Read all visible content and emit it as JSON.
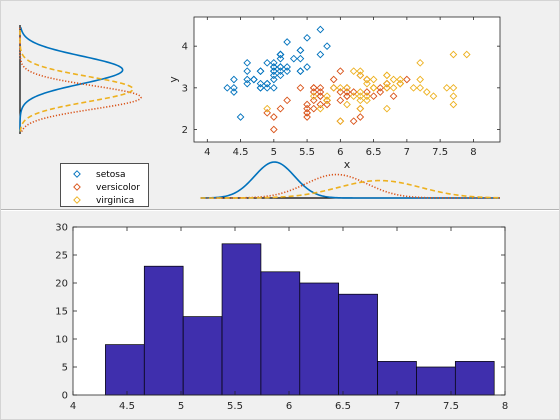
{
  "colors": {
    "setosa": "#0072bd",
    "versicolor": "#d95319",
    "virginica": "#edb120",
    "hist_fill": "#3f2fad",
    "panel_bg": "#f0f0f0",
    "axes_bg": "#ffffff"
  },
  "chart_data": [
    {
      "id": "scatter",
      "type": "scatter",
      "xlabel": "x",
      "ylabel": "y",
      "xlim": [
        3.8,
        8.4
      ],
      "ylim": [
        1.7,
        4.7
      ],
      "xticks": [
        "4",
        "4.5",
        "5",
        "5.5",
        "6",
        "6.5",
        "7",
        "7.5",
        "8"
      ],
      "yticks": [
        "2",
        "3",
        "4"
      ],
      "marker": "diamond-open",
      "series": [
        {
          "name": "setosa",
          "x": [
            5.1,
            4.9,
            4.7,
            4.6,
            5.0,
            5.4,
            4.6,
            5.0,
            4.4,
            4.9,
            5.4,
            4.8,
            4.8,
            4.3,
            5.8,
            5.7,
            5.4,
            5.1,
            5.7,
            5.1,
            5.4,
            5.1,
            4.6,
            5.1,
            4.8,
            5.0,
            5.0,
            5.2,
            5.2,
            4.7,
            4.8,
            5.4,
            5.2,
            5.5,
            4.9,
            5.0,
            5.5,
            4.9,
            4.4,
            5.1,
            5.0,
            4.5,
            4.4,
            5.0,
            5.1,
            4.8,
            5.1,
            4.6,
            5.3,
            5.0
          ],
          "y": [
            3.5,
            3.0,
            3.2,
            3.1,
            3.6,
            3.9,
            3.4,
            3.4,
            2.9,
            3.1,
            3.7,
            3.4,
            3.0,
            3.0,
            4.0,
            4.4,
            3.9,
            3.5,
            3.8,
            3.8,
            3.4,
            3.7,
            3.6,
            3.3,
            3.4,
            3.0,
            3.4,
            3.5,
            3.4,
            3.2,
            3.1,
            3.4,
            4.1,
            4.2,
            3.1,
            3.2,
            3.5,
            3.6,
            3.0,
            3.4,
            3.5,
            2.3,
            3.2,
            3.5,
            3.8,
            3.0,
            3.8,
            3.2,
            3.7,
            3.3
          ]
        },
        {
          "name": "versicolor",
          "x": [
            7.0,
            6.4,
            6.9,
            5.5,
            6.5,
            5.7,
            6.3,
            4.9,
            6.6,
            5.2,
            5.0,
            5.9,
            6.0,
            6.1,
            5.6,
            6.7,
            5.6,
            5.8,
            6.2,
            5.6,
            5.9,
            6.1,
            6.3,
            6.1,
            6.4,
            6.6,
            6.8,
            6.7,
            6.0,
            5.7,
            5.5,
            5.5,
            5.8,
            6.0,
            5.4,
            6.0,
            6.7,
            6.3,
            5.6,
            5.5,
            5.5,
            6.1,
            5.8,
            5.0,
            5.6,
            5.7,
            5.7,
            6.2,
            5.1,
            5.7
          ],
          "y": [
            3.2,
            3.2,
            3.1,
            2.3,
            2.8,
            2.8,
            3.3,
            2.4,
            2.9,
            2.7,
            2.0,
            3.0,
            2.2,
            2.9,
            2.9,
            3.1,
            3.0,
            2.7,
            2.2,
            2.5,
            3.2,
            2.8,
            2.5,
            2.8,
            2.9,
            3.0,
            2.8,
            3.0,
            2.9,
            2.6,
            2.4,
            2.4,
            2.7,
            2.7,
            3.0,
            3.4,
            3.1,
            2.3,
            3.0,
            2.5,
            2.6,
            3.0,
            2.6,
            2.3,
            2.7,
            3.0,
            2.9,
            2.9,
            2.5,
            2.8
          ]
        },
        {
          "name": "virginica",
          "x": [
            6.3,
            5.8,
            7.1,
            6.3,
            6.5,
            7.6,
            4.9,
            7.3,
            6.7,
            7.2,
            6.5,
            6.4,
            6.8,
            5.7,
            5.8,
            6.4,
            6.5,
            7.7,
            7.7,
            6.0,
            6.9,
            5.6,
            7.7,
            6.3,
            6.7,
            7.2,
            6.2,
            6.1,
            6.4,
            7.2,
            7.4,
            7.9,
            6.4,
            6.3,
            6.1,
            7.7,
            6.3,
            6.4,
            6.0,
            6.9,
            6.7,
            6.9,
            5.8,
            6.8,
            6.7,
            6.7,
            6.3,
            6.5,
            6.2,
            5.9
          ],
          "y": [
            3.3,
            2.7,
            3.0,
            2.9,
            3.0,
            3.0,
            2.5,
            2.9,
            2.5,
            3.6,
            3.2,
            2.7,
            3.0,
            2.5,
            2.8,
            3.2,
            3.0,
            3.8,
            2.6,
            2.2,
            3.2,
            2.8,
            2.8,
            2.7,
            3.3,
            3.2,
            2.8,
            3.0,
            2.8,
            3.0,
            2.8,
            3.8,
            2.8,
            2.8,
            2.6,
            3.0,
            3.4,
            3.1,
            3.0,
            3.1,
            3.1,
            3.1,
            2.7,
            3.2,
            3.3,
            3.0,
            2.5,
            3.0,
            3.4,
            3.0
          ]
        }
      ]
    },
    {
      "id": "density_y",
      "type": "line",
      "orientation": "vertical",
      "ylim": [
        1.7,
        4.7
      ],
      "series": [
        {
          "name": "setosa",
          "style": "solid",
          "mean": 3.43,
          "sd": 0.33
        },
        {
          "name": "versicolor",
          "style": "dotted",
          "mean": 2.77,
          "sd": 0.28
        },
        {
          "name": "virginica",
          "style": "dashed",
          "mean": 2.97,
          "sd": 0.3
        }
      ]
    },
    {
      "id": "density_x",
      "type": "line",
      "orientation": "horizontal",
      "xlim": [
        3.8,
        8.4
      ],
      "series": [
        {
          "name": "setosa",
          "style": "solid",
          "mean": 5.01,
          "sd": 0.3
        },
        {
          "name": "versicolor",
          "style": "dotted",
          "mean": 5.94,
          "sd": 0.46
        },
        {
          "name": "virginica",
          "style": "dashed",
          "mean": 6.59,
          "sd": 0.62
        }
      ]
    },
    {
      "id": "histogram",
      "type": "bar",
      "xlim": [
        4,
        8
      ],
      "ylim": [
        0,
        30
      ],
      "xticks": [
        "4",
        "4.5",
        "5",
        "5.5",
        "6",
        "6.5",
        "7",
        "7.5",
        "8"
      ],
      "yticks": [
        "0",
        "5",
        "10",
        "15",
        "20",
        "25",
        "30"
      ],
      "bin_edges": [
        4.3,
        4.66,
        5.02,
        5.38,
        5.74,
        6.1,
        6.46,
        6.82,
        7.18,
        7.54,
        7.9
      ],
      "values": [
        9,
        23,
        14,
        27,
        22,
        20,
        18,
        6,
        5,
        6
      ]
    }
  ],
  "legend": {
    "entries": [
      "setosa",
      "versicolor",
      "virginica"
    ]
  }
}
